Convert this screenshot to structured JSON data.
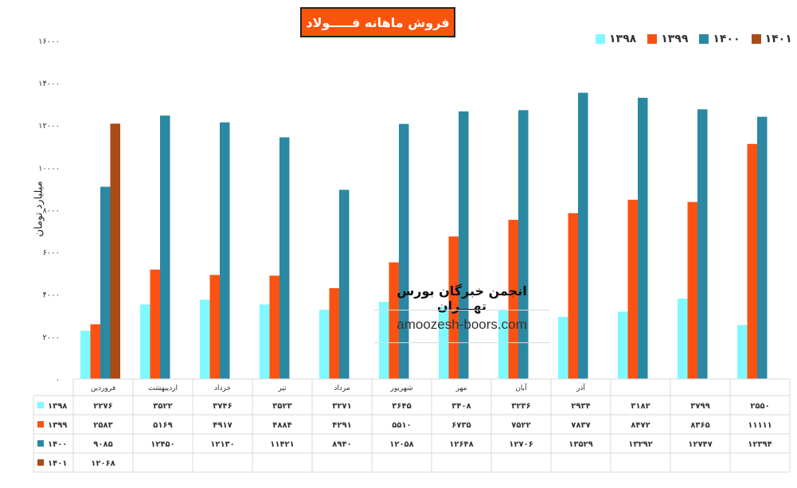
{
  "chart_data": {
    "type": "bar",
    "title": "فروش ماهانه فـــــولاد",
    "ylabel": "میلیارد تومان",
    "ylim": [
      0,
      16000
    ],
    "yticks": [
      "۰",
      "۲۰۰۰",
      "۴۰۰۰",
      "۶۰۰۰",
      "۸۰۰۰",
      "۱۰۰۰۰",
      "۱۲۰۰۰",
      "۱۴۰۰۰",
      "۱۶۰۰۰"
    ],
    "grid": false,
    "legend_position": "top-right",
    "categories": [
      "فروردین",
      "اردیبهشت",
      "خرداد",
      "تیر",
      "مرداد",
      "شهریور",
      "مهر",
      "آبان",
      "آذر",
      "",
      "",
      ""
    ],
    "series": [
      {
        "name": "۱۳۹۸",
        "color": "#7ff9ff",
        "values": [
          2276,
          3522,
          3746,
          3523,
          3271,
          3645,
          3408,
          3236,
          2934,
          3182,
          3799,
          2550
        ],
        "labels": [
          "۲۲۷۶",
          "۳۵۲۲",
          "۳۷۴۶",
          "۳۵۲۳",
          "۳۲۷۱",
          "۳۶۴۵",
          "۳۴۰۸",
          "۳۲۳۶",
          "۲۹۳۴",
          "۳۱۸۲",
          "۳۷۹۹",
          "۲۵۵۰"
        ]
      },
      {
        "name": "۱۳۹۹",
        "color": "#fb5213",
        "values": [
          2583,
          5169,
          4917,
          4884,
          4291,
          5510,
          6735,
          7522,
          7837,
          8472,
          8365,
          11111
        ],
        "labels": [
          "۲۵۸۳",
          "۵۱۶۹",
          "۴۹۱۷",
          "۴۸۸۴",
          "۴۲۹۱",
          "۵۵۱۰",
          "۶۷۳۵",
          "۷۵۲۲",
          "۷۸۳۷",
          "۸۴۷۲",
          "۸۳۶۵",
          "۱۱۱۱۱"
        ]
      },
      {
        "name": "۱۴۰۰",
        "color": "#2a88a2",
        "values": [
          9085,
          12450,
          12130,
          11421,
          8940,
          12058,
          12648,
          12706,
          13529,
          13292,
          12747,
          12394
        ],
        "labels": [
          "۹۰۸۵",
          "۱۲۴۵۰",
          "۱۲۱۳۰",
          "۱۱۴۲۱",
          "۸۹۴۰",
          "۱۲۰۵۸",
          "۱۲۶۴۸",
          "۱۲۷۰۶",
          "۱۳۵۲۹",
          "۱۳۲۹۲",
          "۱۲۷۴۷",
          "۱۲۳۹۴"
        ]
      },
      {
        "name": "۱۴۰۱",
        "color": "#a94b17",
        "values": [
          12068,
          null,
          null,
          null,
          null,
          null,
          null,
          null,
          null,
          null,
          null,
          null
        ],
        "labels": [
          "۱۲۰۶۸",
          "",
          "",
          "",
          "",
          "",
          "",
          "",
          "",
          "",
          "",
          ""
        ]
      }
    ]
  },
  "watermark": {
    "title": "انجمن خبرگان بورس تهـــران",
    "url": "amoozesh-boors.com"
  }
}
